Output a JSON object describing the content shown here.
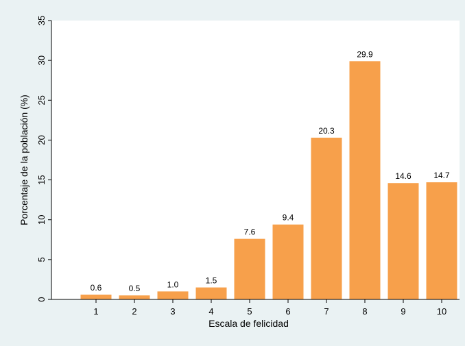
{
  "chart_data": {
    "type": "bar",
    "title": "",
    "xlabel": "Escala de felicidad",
    "ylabel": "Porcentaje de la población (%)",
    "categories": [
      "1",
      "2",
      "3",
      "4",
      "5",
      "6",
      "7",
      "8",
      "9",
      "10"
    ],
    "values": [
      0.6,
      0.5,
      1.0,
      1.5,
      7.6,
      9.4,
      20.3,
      29.9,
      14.6,
      14.7
    ],
    "value_labels": [
      "0.6",
      "0.5",
      "1.0",
      "1.5",
      "7.6",
      "9.4",
      "20.3",
      "29.9",
      "14.6",
      "14.7"
    ],
    "ylim": [
      0,
      35
    ],
    "yticks": [
      0,
      5,
      10,
      15,
      20,
      25,
      30,
      35
    ],
    "grid": false,
    "colors": {
      "bar": "#f7a04b",
      "plot_background": "#ffffff",
      "page_background": "#eaf2f3",
      "axis": "#000000"
    }
  }
}
